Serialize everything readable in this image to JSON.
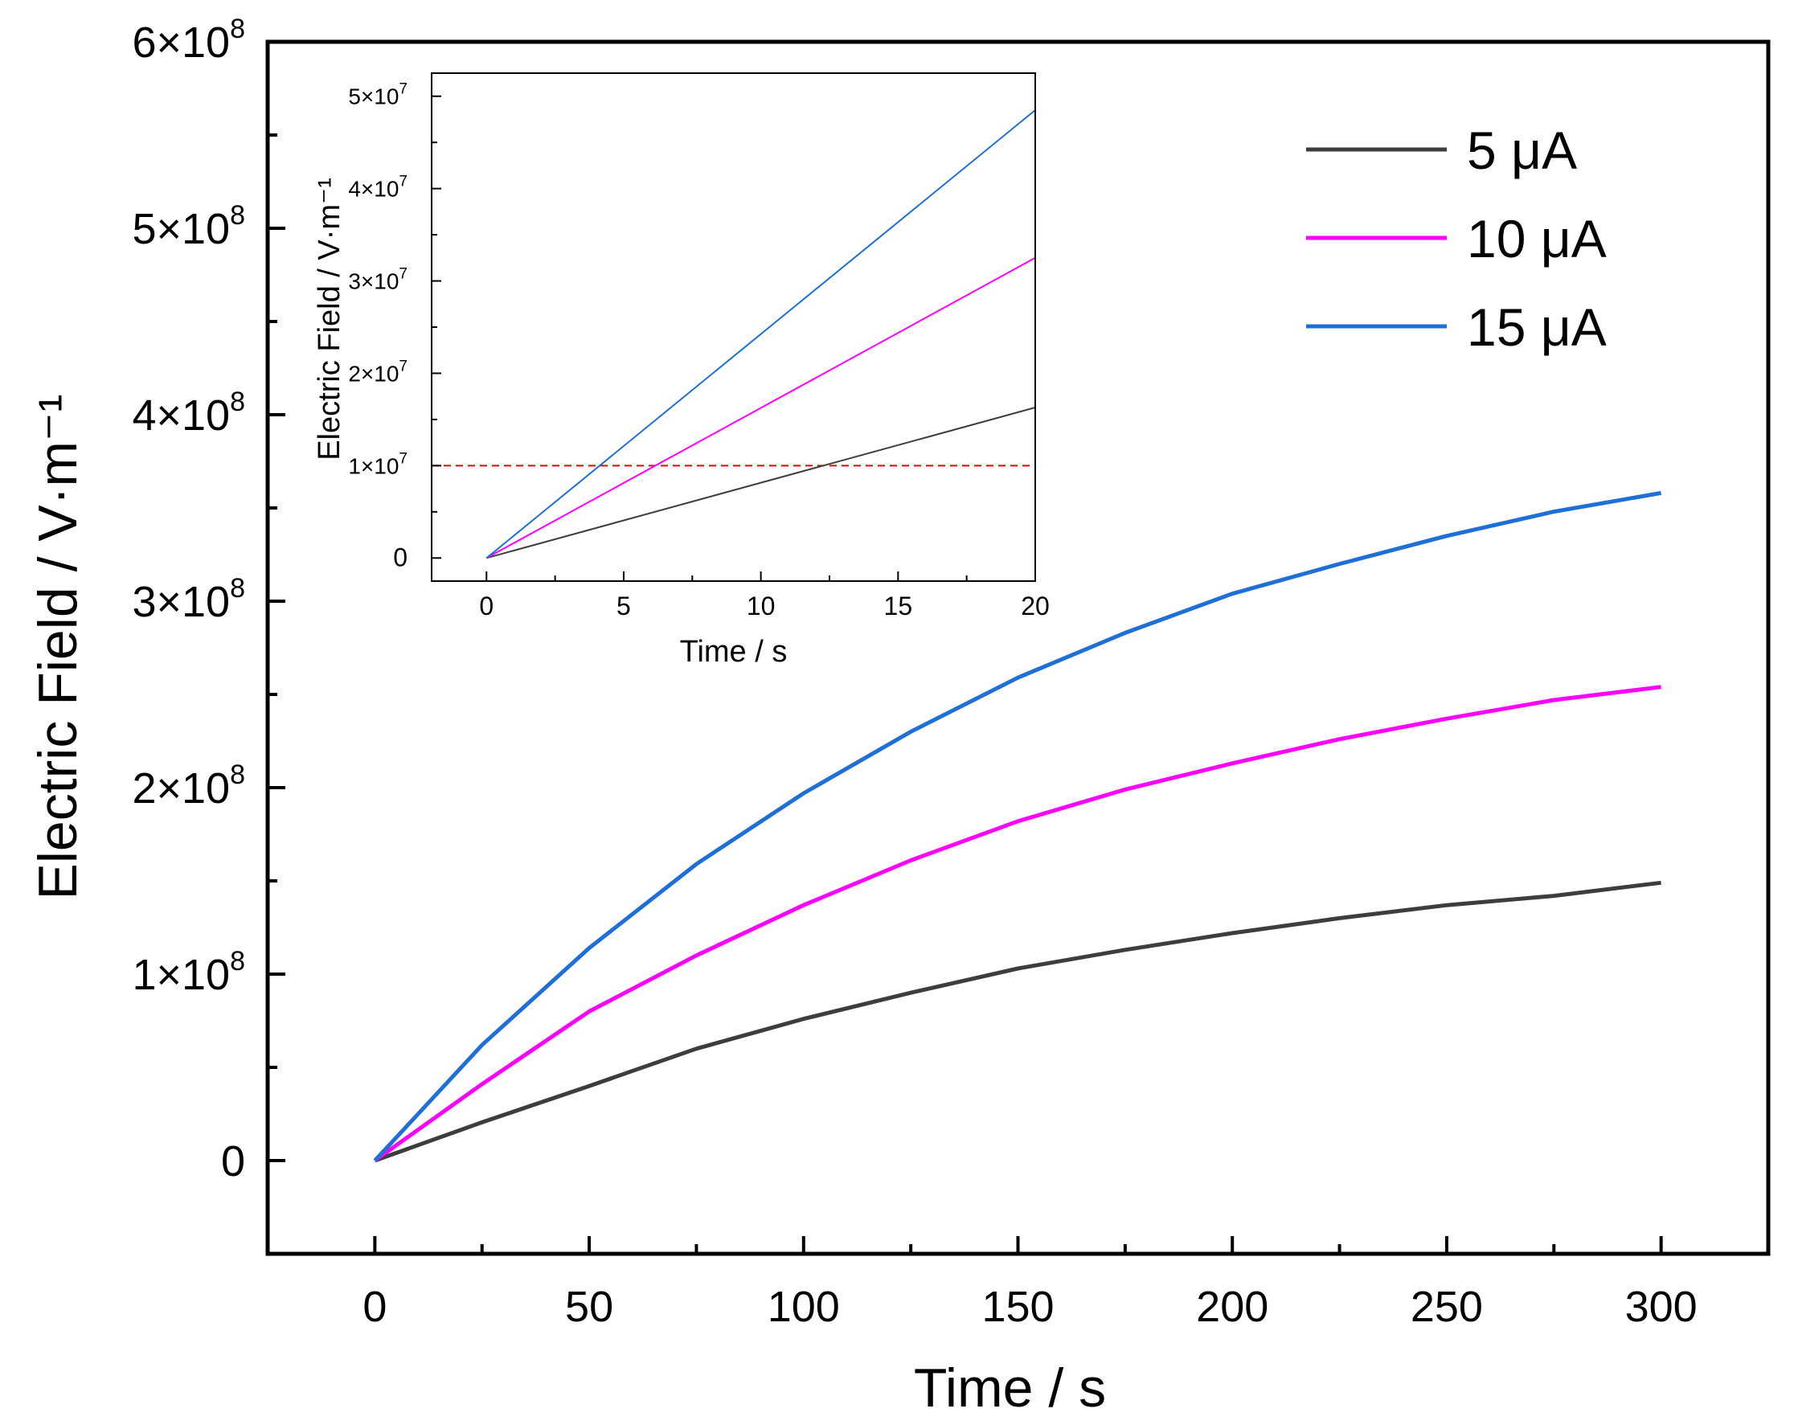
{
  "chart_data": [
    {
      "id": "main",
      "type": "line",
      "xlabel": "Time / s",
      "ylabel": "Electric Field / V·m⁻¹",
      "xlim": [
        -25,
        325
      ],
      "ylim": [
        -50000000,
        600000000
      ],
      "grid": false,
      "legend_position": "top-right",
      "x_ticks": [
        {
          "value": 0,
          "label": "0"
        },
        {
          "value": 50,
          "label": "50"
        },
        {
          "value": 100,
          "label": "100"
        },
        {
          "value": 150,
          "label": "150"
        },
        {
          "value": 200,
          "label": "200"
        },
        {
          "value": 250,
          "label": "250"
        },
        {
          "value": 300,
          "label": "300"
        }
      ],
      "y_ticks": [
        {
          "value": 0,
          "mant": "0",
          "exp": ""
        },
        {
          "value": 100000000,
          "mant": "1×10",
          "exp": "8"
        },
        {
          "value": 200000000,
          "mant": "2×10",
          "exp": "8"
        },
        {
          "value": 300000000,
          "mant": "3×10",
          "exp": "8"
        },
        {
          "value": 400000000,
          "mant": "4×10",
          "exp": "8"
        },
        {
          "value": 500000000,
          "mant": "5×10",
          "exp": "8"
        },
        {
          "value": 600000000,
          "mant": "6×10",
          "exp": "8"
        }
      ],
      "series": [
        {
          "name": "5 μA",
          "color": "#3d3d3d",
          "x": [
            0,
            25,
            50,
            75,
            100,
            125,
            150,
            175,
            200,
            225,
            250,
            275,
            300
          ],
          "y": [
            0,
            20500000,
            40000000,
            60000000,
            76000000,
            90000000,
            103000000,
            113000000,
            122000000,
            130000000,
            137000000,
            142000000,
            149000000
          ]
        },
        {
          "name": "10 μA",
          "color": "#ff00ff",
          "x": [
            0,
            25,
            50,
            75,
            100,
            125,
            150,
            175,
            200,
            225,
            250,
            275,
            300
          ],
          "y": [
            0,
            41000000,
            80000000,
            110000000,
            137000000,
            161000000,
            182000000,
            199000000,
            213000000,
            226000000,
            237000000,
            247000000,
            254000000
          ]
        },
        {
          "name": "15 μA",
          "color": "#1f6fd9",
          "x": [
            0,
            25,
            50,
            75,
            100,
            125,
            150,
            175,
            200,
            225,
            250,
            275,
            300
          ],
          "y": [
            0,
            62000000,
            114000000,
            159000000,
            197000000,
            230000000,
            259000000,
            283000000,
            304000000,
            320000000,
            335000000,
            348000000,
            358000000
          ]
        }
      ]
    },
    {
      "id": "inset",
      "type": "line",
      "xlabel": "Time / s",
      "ylabel": "Electric Field / V·m⁻¹",
      "xlim": [
        -2,
        20
      ],
      "ylim": [
        -2500000,
        52500000
      ],
      "grid": false,
      "x_ticks": [
        {
          "value": 0,
          "label": "0"
        },
        {
          "value": 5,
          "label": "5"
        },
        {
          "value": 10,
          "label": "10"
        },
        {
          "value": 15,
          "label": "15"
        },
        {
          "value": 20,
          "label": "20"
        }
      ],
      "y_ticks": [
        {
          "value": 0,
          "mant": "0",
          "exp": ""
        },
        {
          "value": 10000000,
          "mant": "1×10",
          "exp": "7"
        },
        {
          "value": 20000000,
          "mant": "2×10",
          "exp": "7"
        },
        {
          "value": 30000000,
          "mant": "3×10",
          "exp": "7"
        },
        {
          "value": 40000000,
          "mant": "4×10",
          "exp": "7"
        },
        {
          "value": 50000000,
          "mant": "5×10",
          "exp": "7"
        }
      ],
      "reference_line": {
        "y": 10000000,
        "color": "#e8000b",
        "style": "dashed"
      },
      "series": [
        {
          "name": "5 μA",
          "color": "#3d3d3d",
          "x": [
            0,
            20
          ],
          "y": [
            0,
            16300000
          ]
        },
        {
          "name": "10 μA",
          "color": "#ff00ff",
          "x": [
            0,
            20
          ],
          "y": [
            0,
            32500000
          ]
        },
        {
          "name": "15 μA",
          "color": "#1f6fd9",
          "x": [
            0,
            20
          ],
          "y": [
            0,
            48500000
          ]
        }
      ]
    }
  ]
}
